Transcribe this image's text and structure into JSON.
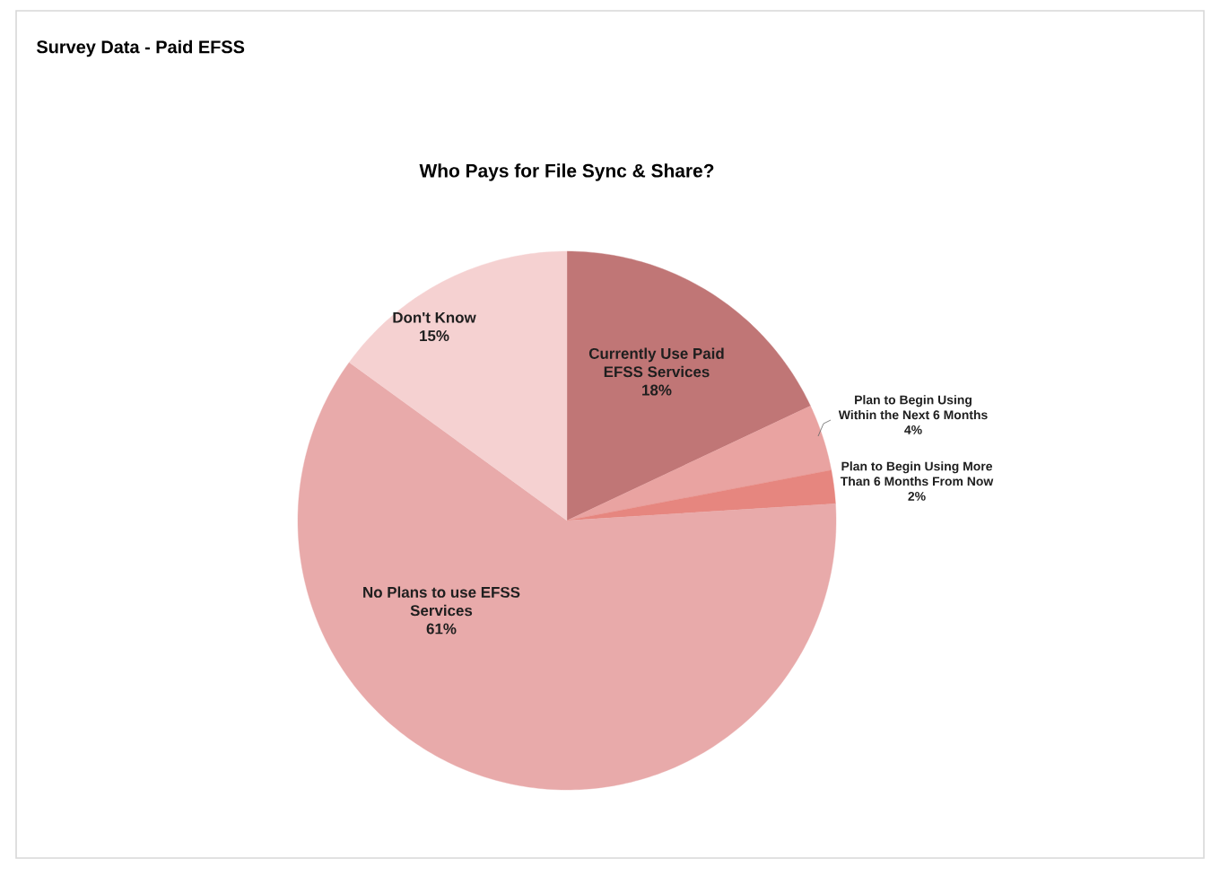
{
  "chart_data": {
    "type": "pie",
    "title": "Survey Data - Paid EFSS",
    "subtitle": "Who Pays for File Sync & Share?",
    "categories": [
      "Currently Use Paid EFSS Services",
      "Plan to Begin Using Within the Next 6 Months",
      "Plan to Begin Using More Than 6 Months From Now",
      "No Plans to use EFSS Services",
      "Don't Know"
    ],
    "values": [
      18,
      4,
      2,
      61,
      15
    ],
    "value_labels": [
      "18%",
      "4%",
      "2%",
      "61%",
      "15%"
    ],
    "colors": [
      "#c07676",
      "#e9a3a1",
      "#e6867f",
      "#e8aaaa",
      "#f5d1d1"
    ]
  }
}
